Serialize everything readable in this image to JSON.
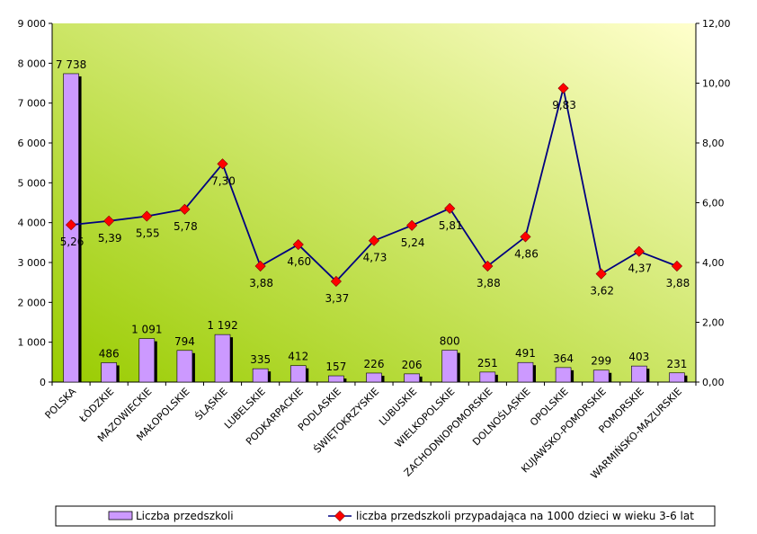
{
  "chart_data": {
    "type": "bar",
    "categories": [
      "POLSKA",
      "ŁÓDZKIE",
      "MAZOWIECKIE",
      "MAŁOPOLSKIE",
      "ŚLĄSKIE",
      "LUBELSKIE",
      "PODKARPACKIE",
      "PODLASKIE",
      "ŚWIĘTOKRZYSKIE",
      "LUBUSKIE",
      "WIELKOPOLSKIE",
      "ZACHODNIOPOMORSKIE",
      "DOLNOŚLĄSKIE",
      "OPOLSKIE",
      "KUJAWSKO-POMORSKIE",
      "POMORSKIE",
      "WARMIŃSKO-MAZURSKIE"
    ],
    "series": [
      {
        "name": "Liczba przedszkoli",
        "type": "bar",
        "axis": "left",
        "color": "#cc99ff",
        "values": [
          7738,
          486,
          1091,
          794,
          1192,
          335,
          412,
          157,
          226,
          206,
          800,
          251,
          491,
          364,
          299,
          403,
          231
        ],
        "labels": [
          "7 738",
          "486",
          "1 091",
          "794",
          "1 192",
          "335",
          "412",
          "157",
          "226",
          "206",
          "800",
          "251",
          "491",
          "364",
          "299",
          "403",
          "231"
        ]
      },
      {
        "name": "liczba przedszkoli przypadająca na 1000 dzieci w wieku 3-6 lat",
        "type": "line",
        "axis": "right",
        "color": "#000080",
        "marker_color": "#ff0000",
        "values": [
          5.26,
          5.39,
          5.55,
          5.78,
          7.3,
          3.88,
          4.6,
          3.37,
          4.73,
          5.24,
          5.81,
          3.88,
          4.86,
          9.83,
          3.62,
          4.37,
          3.88
        ],
        "labels": [
          "5,26",
          "5,39",
          "5,55",
          "5,78",
          "7,30",
          "3,88",
          "4,60",
          "3,37",
          "4,73",
          "5,24",
          "5,81",
          "3,88",
          "4,86",
          "9,83",
          "3,62",
          "4,37",
          "3,88"
        ]
      }
    ],
    "y_left": {
      "ylim": [
        0,
        9000
      ],
      "ticks": [
        0,
        1000,
        2000,
        3000,
        4000,
        5000,
        6000,
        7000,
        8000,
        9000
      ],
      "tick_labels": [
        "0",
        "1 000",
        "2 000",
        "3 000",
        "4 000",
        "5 000",
        "6 000",
        "7 000",
        "8 000",
        "9 000"
      ]
    },
    "y_right": {
      "ylim": [
        0,
        12
      ],
      "ticks": [
        0,
        2,
        4,
        6,
        8,
        10,
        12
      ],
      "tick_labels": [
        "0,00",
        "2,00",
        "4,00",
        "6,00",
        "8,00",
        "10,00",
        "12,00"
      ]
    },
    "grid": false,
    "legend": "bottom",
    "background_gradient": [
      "#99cc00",
      "#ffffcc"
    ],
    "title": "",
    "xlabel": "",
    "ylabel": ""
  }
}
